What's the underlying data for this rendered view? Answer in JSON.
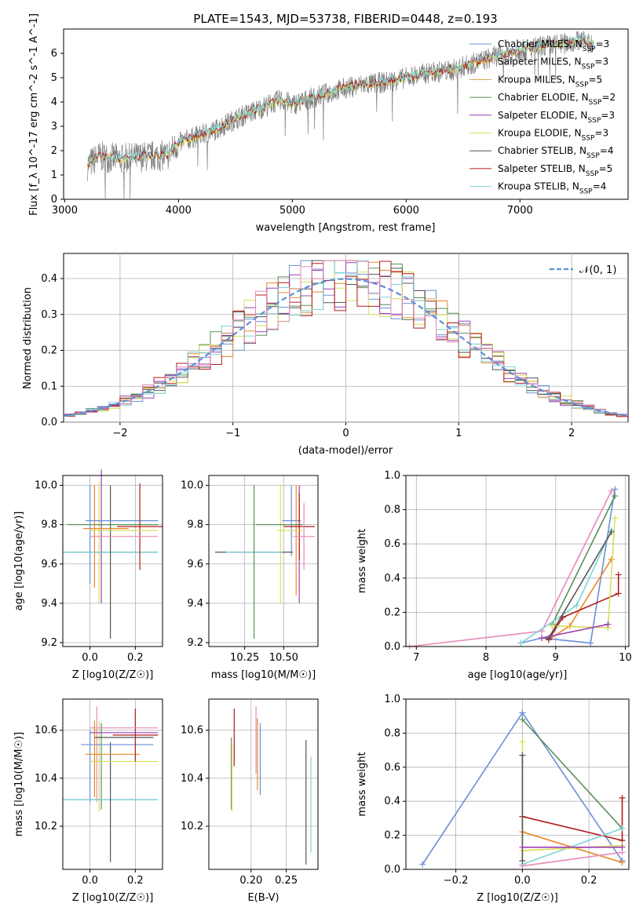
{
  "colors": {
    "chabrier_miles": "#6b8fd8",
    "salpeter_miles": "#e8892c",
    "kroupa_miles": "#d9a04a",
    "chabrier_elodie": "#5a8f5a",
    "salpeter_elodie": "#9b3fb5",
    "kroupa_elodie": "#d8e05a",
    "chabrier_stelib": "#555555",
    "salpeter_stelib": "#b01c1c",
    "kroupa_stelib": "#7fd3d8",
    "pink": "#e88ab8",
    "normal": "#5b8fd8"
  },
  "chart_data": [
    {
      "id": "spectrum",
      "type": "line",
      "title": "PLATE=1543, MJD=53738, FIBERID=0448, z=0.193",
      "xlabel": "wavelength [Angstrom, rest frame]",
      "ylabel": "Flux [f_λ 10^-17 erg cm^-2 s^-1 A^-1]",
      "xlim": [
        2990,
        7950
      ],
      "ylim": [
        0,
        7.0
      ],
      "xticks": [
        3000,
        4000,
        5000,
        6000,
        7000
      ],
      "yticks": [
        0,
        1,
        2,
        3,
        4,
        5,
        6
      ],
      "legend_position": "top-right",
      "legend": [
        {
          "label": "Chabrier MILES, N",
          "n": "3",
          "color": "chabrier_miles"
        },
        {
          "label": "Salpeter MILES, N",
          "n": "3",
          "color": "salpeter_miles"
        },
        {
          "label": "Kroupa MILES, N",
          "n": "5",
          "color": "kroupa_miles"
        },
        {
          "label": "Chabrier ELODIE, N",
          "n": "2",
          "color": "chabrier_elodie"
        },
        {
          "label": "Salpeter ELODIE, N",
          "n": "3",
          "color": "salpeter_elodie"
        },
        {
          "label": "Kroupa ELODIE, N",
          "n": "3",
          "color": "kroupa_elodie"
        },
        {
          "label": "Chabrier STELIB, N",
          "n": "4",
          "color": "chabrier_stelib"
        },
        {
          "label": "Salpeter STELIB, N",
          "n": "5",
          "color": "salpeter_stelib"
        },
        {
          "label": "Kroupa STELIB, N",
          "n": "4",
          "color": "kroupa_stelib"
        }
      ],
      "legend_subscript": "SSP",
      "continuum_points": [
        [
          3200,
          1.4
        ],
        [
          3300,
          1.75
        ],
        [
          3500,
          1.65
        ],
        [
          3700,
          1.75
        ],
        [
          3900,
          1.8
        ],
        [
          4000,
          2.3
        ],
        [
          4100,
          2.5
        ],
        [
          4300,
          2.8
        ],
        [
          4500,
          3.3
        ],
        [
          4700,
          3.7
        ],
        [
          4900,
          4.1
        ],
        [
          5000,
          3.9
        ],
        [
          5200,
          4.2
        ],
        [
          5400,
          4.5
        ],
        [
          5600,
          4.7
        ],
        [
          5800,
          4.8
        ],
        [
          6000,
          5.0
        ],
        [
          6200,
          5.2
        ],
        [
          6400,
          5.3
        ],
        [
          6600,
          5.6
        ],
        [
          6800,
          5.9
        ],
        [
          7000,
          6.1
        ],
        [
          7200,
          6.3
        ],
        [
          7400,
          6.4
        ],
        [
          7550,
          6.6
        ],
        [
          7650,
          6.3
        ]
      ]
    },
    {
      "id": "residuals",
      "type": "step",
      "xlabel": "(data-model)/error",
      "ylabel": "Normed distribution",
      "xlim": [
        -2.5,
        2.5
      ],
      "ylim": [
        0,
        0.47
      ],
      "xticks": [
        -2,
        -1,
        0,
        1,
        2
      ],
      "yticks": [
        0.0,
        0.1,
        0.2,
        0.3,
        0.4
      ],
      "normal_label": "𝒩(0, 1)",
      "legend_position": "top-right"
    },
    {
      "id": "z_age",
      "type": "errorbar",
      "xlabel": "Z [log10(Z/Z☉)]",
      "ylabel": "age  [log10(age/yr)]",
      "xlim": [
        -0.12,
        0.32
      ],
      "ylim": [
        9.18,
        10.05
      ],
      "xticks": [
        0.0,
        0.2
      ],
      "yticks": [
        9.2,
        9.4,
        9.6,
        9.8,
        10.0
      ]
    },
    {
      "id": "mass_age",
      "type": "errorbar",
      "xlabel": "mass [log10(M/M☉)]",
      "ylabel": "",
      "xlim": [
        10.02,
        10.72
      ],
      "ylim": [
        9.18,
        10.05
      ],
      "xticks": [
        10.25,
        10.5
      ],
      "yticks": [
        9.2,
        9.4,
        9.6,
        9.8,
        10.0
      ]
    },
    {
      "id": "age_weight",
      "type": "line",
      "xlabel": "age  [log10(age/yr)]",
      "ylabel": "mass weight",
      "xlim": [
        6.85,
        10.05
      ],
      "ylim": [
        0,
        1.0
      ],
      "xticks": [
        7,
        8,
        9,
        10
      ],
      "yticks": [
        0.0,
        0.2,
        0.4,
        0.6,
        0.8,
        1.0
      ]
    },
    {
      "id": "z_mass",
      "type": "errorbar",
      "xlabel": "Z [log10(Z/Z☉)]",
      "ylabel": "mass [log10(M/M☉)]",
      "xlim": [
        -0.12,
        0.32
      ],
      "ylim": [
        10.02,
        10.73
      ],
      "xticks": [
        0.0,
        0.2
      ],
      "yticks": [
        10.2,
        10.4,
        10.6
      ]
    },
    {
      "id": "ebv_mass",
      "type": "errorbar",
      "xlabel": "E(B-V)",
      "ylabel": "",
      "xlim": [
        0.14,
        0.295
      ],
      "ylim": [
        10.02,
        10.73
      ],
      "xticks": [
        0.2,
        0.25
      ],
      "yticks": [
        10.2,
        10.4,
        10.6
      ]
    },
    {
      "id": "z_weight",
      "type": "line",
      "xlabel": "Z [log10(Z/Z☉)]",
      "ylabel": "mass weight",
      "xlim": [
        -0.35,
        0.32
      ],
      "ylim": [
        0,
        1.0
      ],
      "xticks": [
        -0.2,
        0.0,
        0.2
      ],
      "yticks": [
        0.0,
        0.2,
        0.4,
        0.6,
        0.8,
        1.0
      ]
    }
  ],
  "errorbar_points": {
    "z_age": [
      {
        "c": "chabrier_miles",
        "x": 0.0,
        "xe": 0.0,
        "y": 9.75,
        "ye": 0.25
      },
      {
        "c": "salpeter_miles",
        "x": 0.02,
        "xe": 0.0,
        "y": 9.74,
        "ye": 0.26
      },
      {
        "c": "kroupa_elodie",
        "x": 0.04,
        "xe": 0.0,
        "y": 9.71,
        "ye": 0.31
      },
      {
        "c": "salpeter_elodie",
        "x": 0.05,
        "xe": 0.0,
        "y": 9.74,
        "ye": 0.34
      },
      {
        "c": "chabrier_miles",
        "x": 0.09,
        "xe": 0.21,
        "y": 9.66,
        "ye": 0.0
      },
      {
        "c": "chabrier_elodie",
        "x": 0.09,
        "xe": 0.2,
        "y": 9.66,
        "ye": 0.0
      },
      {
        "c": "kroupa_stelib",
        "x": 0.09,
        "xe": 0.21,
        "y": 9.66,
        "ye": 0.0
      },
      {
        "c": "chabrier_stelib",
        "x": 0.09,
        "xe": 0.0,
        "y": 9.61,
        "ye": 0.39
      },
      {
        "c": "chabrier_miles",
        "x": 0.14,
        "xe": 0.16,
        "y": 9.82,
        "ye": 0.0
      },
      {
        "c": "chabrier_elodie",
        "x": 0.1,
        "xe": 0.2,
        "y": 9.8,
        "ye": 0.0
      },
      {
        "c": "salpeter_stelib",
        "x": 0.22,
        "xe": 0.1,
        "y": 9.79,
        "ye": 0.22
      },
      {
        "c": "salpeter_miles",
        "x": 0.07,
        "xe": 0.1,
        "y": 9.78,
        "ye": 0.0
      },
      {
        "c": "kroupa_elodie",
        "x": 0.15,
        "xe": 0.15,
        "y": 9.77,
        "ye": 0.0
      },
      {
        "c": "pink",
        "x": 0.15,
        "xe": 0.15,
        "y": 9.74,
        "ye": 0.0
      }
    ],
    "mass_age": [
      {
        "c": "chabrier_miles",
        "x": 10.55,
        "xe": 0.06,
        "y": 9.82,
        "ye": 0.18
      },
      {
        "c": "salpeter_miles",
        "x": 10.58,
        "xe": 0.0,
        "y": 9.72,
        "ye": 0.28
      },
      {
        "c": "kroupa_elodie",
        "x": 10.48,
        "xe": 0.0,
        "y": 9.7,
        "ye": 0.3
      },
      {
        "c": "salpeter_elodie",
        "x": 10.6,
        "xe": 0.0,
        "y": 9.7,
        "ye": 0.3
      },
      {
        "c": "chabrier_stelib",
        "x": 10.31,
        "xe": 0.25,
        "y": 9.66,
        "ye": 0.0
      },
      {
        "c": "kroupa_stelib",
        "x": 10.31,
        "xe": 0.18,
        "y": 9.66,
        "ye": 0.0
      },
      {
        "c": "chabrier_elodie",
        "x": 10.31,
        "xe": 0.0,
        "y": 9.61,
        "ye": 0.39
      },
      {
        "c": "chabrier_elodie",
        "x": 10.47,
        "xe": 0.15,
        "y": 9.8,
        "ye": 0.0
      },
      {
        "c": "salpeter_stelib",
        "x": 10.6,
        "xe": 0.1,
        "y": 9.79,
        "ye": 0.17
      },
      {
        "c": "kroupa_elodie",
        "x": 10.54,
        "xe": 0.08,
        "y": 9.77,
        "ye": 0.0
      },
      {
        "c": "pink",
        "x": 10.63,
        "xe": 0.07,
        "y": 9.74,
        "ye": 0.17
      }
    ],
    "z_mass": [
      {
        "c": "chabrier_miles",
        "x": 0.0,
        "xe": 0.0,
        "y": 10.45,
        "ye": 0.15
      },
      {
        "c": "salpeter_miles",
        "x": 0.02,
        "xe": 0.0,
        "y": 10.48,
        "ye": 0.16
      },
      {
        "c": "kroupa_elodie",
        "x": 0.04,
        "xe": 0.0,
        "y": 10.45,
        "ye": 0.19
      },
      {
        "c": "pink",
        "x": 0.03,
        "xe": 0.0,
        "y": 10.5,
        "ye": 0.2
      },
      {
        "c": "chabrier_elodie",
        "x": 0.05,
        "xe": 0.0,
        "y": 10.45,
        "ye": 0.18
      },
      {
        "c": "chabrier_miles",
        "x": 0.09,
        "xe": 0.21,
        "y": 10.31,
        "ye": 0.0
      },
      {
        "c": "chabrier_elodie",
        "x": 0.09,
        "xe": 0.2,
        "y": 10.31,
        "ye": 0.0
      },
      {
        "c": "kroupa_stelib",
        "x": 0.09,
        "xe": 0.21,
        "y": 10.31,
        "ye": 0.0
      },
      {
        "c": "chabrier_stelib",
        "x": 0.09,
        "xe": 0.0,
        "y": 10.3,
        "ye": 0.25
      },
      {
        "c": "chabrier_miles",
        "x": 0.12,
        "xe": 0.16,
        "y": 10.54,
        "ye": 0.0
      },
      {
        "c": "salpeter_miles",
        "x": 0.1,
        "xe": 0.12,
        "y": 10.5,
        "ye": 0.0
      },
      {
        "c": "kroupa_elodie",
        "x": 0.15,
        "xe": 0.15,
        "y": 10.47,
        "ye": 0.0
      },
      {
        "c": "salpeter_stelib",
        "x": 0.2,
        "xe": 0.1,
        "y": 10.58,
        "ye": 0.11
      },
      {
        "c": "pink",
        "x": 0.15,
        "xe": 0.15,
        "y": 10.61,
        "ye": 0.0
      },
      {
        "c": "salpeter_elodie",
        "x": 0.15,
        "xe": 0.15,
        "y": 10.59,
        "ye": 0.0
      },
      {
        "c": "chabrier_stelib",
        "x": 0.15,
        "xe": 0.13,
        "y": 10.57,
        "ye": 0.0
      }
    ],
    "ebv_mass": [
      {
        "c": "chabrier_elodie",
        "x": 0.172,
        "xe": 0.0,
        "y": 10.42,
        "ye": 0.15
      },
      {
        "c": "kroupa_elodie",
        "x": 0.173,
        "xe": 0.0,
        "y": 10.4,
        "ye": 0.14
      },
      {
        "c": "salpeter_stelib",
        "x": 0.176,
        "xe": 0.0,
        "y": 10.57,
        "ye": 0.12
      },
      {
        "c": "pink",
        "x": 0.207,
        "xe": 0.0,
        "y": 10.56,
        "ye": 0.14
      },
      {
        "c": "salpeter_miles",
        "x": 0.209,
        "xe": 0.0,
        "y": 10.5,
        "ye": 0.15
      },
      {
        "c": "chabrier_miles",
        "x": 0.213,
        "xe": 0.0,
        "y": 10.48,
        "ye": 0.15
      },
      {
        "c": "chabrier_stelib",
        "x": 0.278,
        "xe": 0.0,
        "y": 10.3,
        "ye": 0.26
      },
      {
        "c": "kroupa_stelib",
        "x": 0.285,
        "xe": 0.0,
        "y": 10.29,
        "ye": 0.2
      }
    ]
  },
  "weight_lines": {
    "age_weight": [
      {
        "c": "pink",
        "pts": [
          [
            6.9,
            0.0
          ],
          [
            8.8,
            0.09
          ],
          [
            9.8,
            0.91
          ]
        ]
      },
      {
        "c": "chabrier_miles",
        "pts": [
          [
            8.5,
            0.02
          ],
          [
            8.8,
            0.05
          ],
          [
            9.5,
            0.02
          ],
          [
            9.85,
            0.92
          ]
        ]
      },
      {
        "c": "chabrier_elodie",
        "pts": [
          [
            8.95,
            0.13
          ],
          [
            9.85,
            0.88
          ]
        ]
      },
      {
        "c": "salpeter_miles",
        "pts": [
          [
            8.9,
            0.04
          ],
          [
            9.2,
            0.12
          ],
          [
            9.8,
            0.51
          ]
        ]
      },
      {
        "c": "salpeter_stelib",
        "pts": [
          [
            8.9,
            0.04
          ],
          [
            9.1,
            0.17
          ],
          [
            9.9,
            0.31
          ],
          [
            9.9,
            0.42
          ]
        ]
      },
      {
        "c": "kroupa_stelib",
        "pts": [
          [
            8.5,
            0.02
          ],
          [
            9.3,
            0.24
          ],
          [
            9.8,
            0.68
          ]
        ]
      },
      {
        "c": "kroupa_elodie",
        "pts": [
          [
            8.95,
            0.12
          ],
          [
            9.75,
            0.11
          ],
          [
            9.85,
            0.75
          ]
        ]
      },
      {
        "c": "chabrier_stelib",
        "pts": [
          [
            8.9,
            0.05
          ],
          [
            9.8,
            0.67
          ]
        ]
      },
      {
        "c": "salpeter_elodie",
        "pts": [
          [
            8.8,
            0.05
          ],
          [
            9.75,
            0.13
          ]
        ]
      }
    ],
    "z_weight": [
      {
        "c": "chabrier_miles",
        "pts": [
          [
            -0.3,
            0.03
          ],
          [
            0.0,
            0.92
          ],
          [
            0.3,
            0.05
          ]
        ]
      },
      {
        "c": "chabrier_elodie",
        "pts": [
          [
            0.0,
            0.88
          ],
          [
            0.3,
            0.24
          ]
        ]
      },
      {
        "c": "salpeter_stelib",
        "pts": [
          [
            0.0,
            0.31
          ],
          [
            0.3,
            0.17
          ],
          [
            0.3,
            0.42
          ]
        ]
      },
      {
        "c": "salpeter_miles",
        "pts": [
          [
            0.0,
            0.22
          ],
          [
            0.3,
            0.04
          ]
        ]
      },
      {
        "c": "kroupa_stelib",
        "pts": [
          [
            0.0,
            0.03
          ],
          [
            0.3,
            0.24
          ]
        ]
      },
      {
        "c": "kroupa_elodie",
        "pts": [
          [
            0.0,
            0.75
          ],
          [
            0.0,
            0.11
          ],
          [
            0.3,
            0.14
          ]
        ]
      },
      {
        "c": "pink",
        "pts": [
          [
            0.0,
            0.02
          ],
          [
            0.3,
            0.1
          ]
        ]
      },
      {
        "c": "chabrier_stelib",
        "pts": [
          [
            0.0,
            0.67
          ],
          [
            0.0,
            0.05
          ]
        ]
      },
      {
        "c": "salpeter_elodie",
        "pts": [
          [
            0.0,
            0.13
          ],
          [
            0.3,
            0.13
          ]
        ]
      }
    ]
  }
}
